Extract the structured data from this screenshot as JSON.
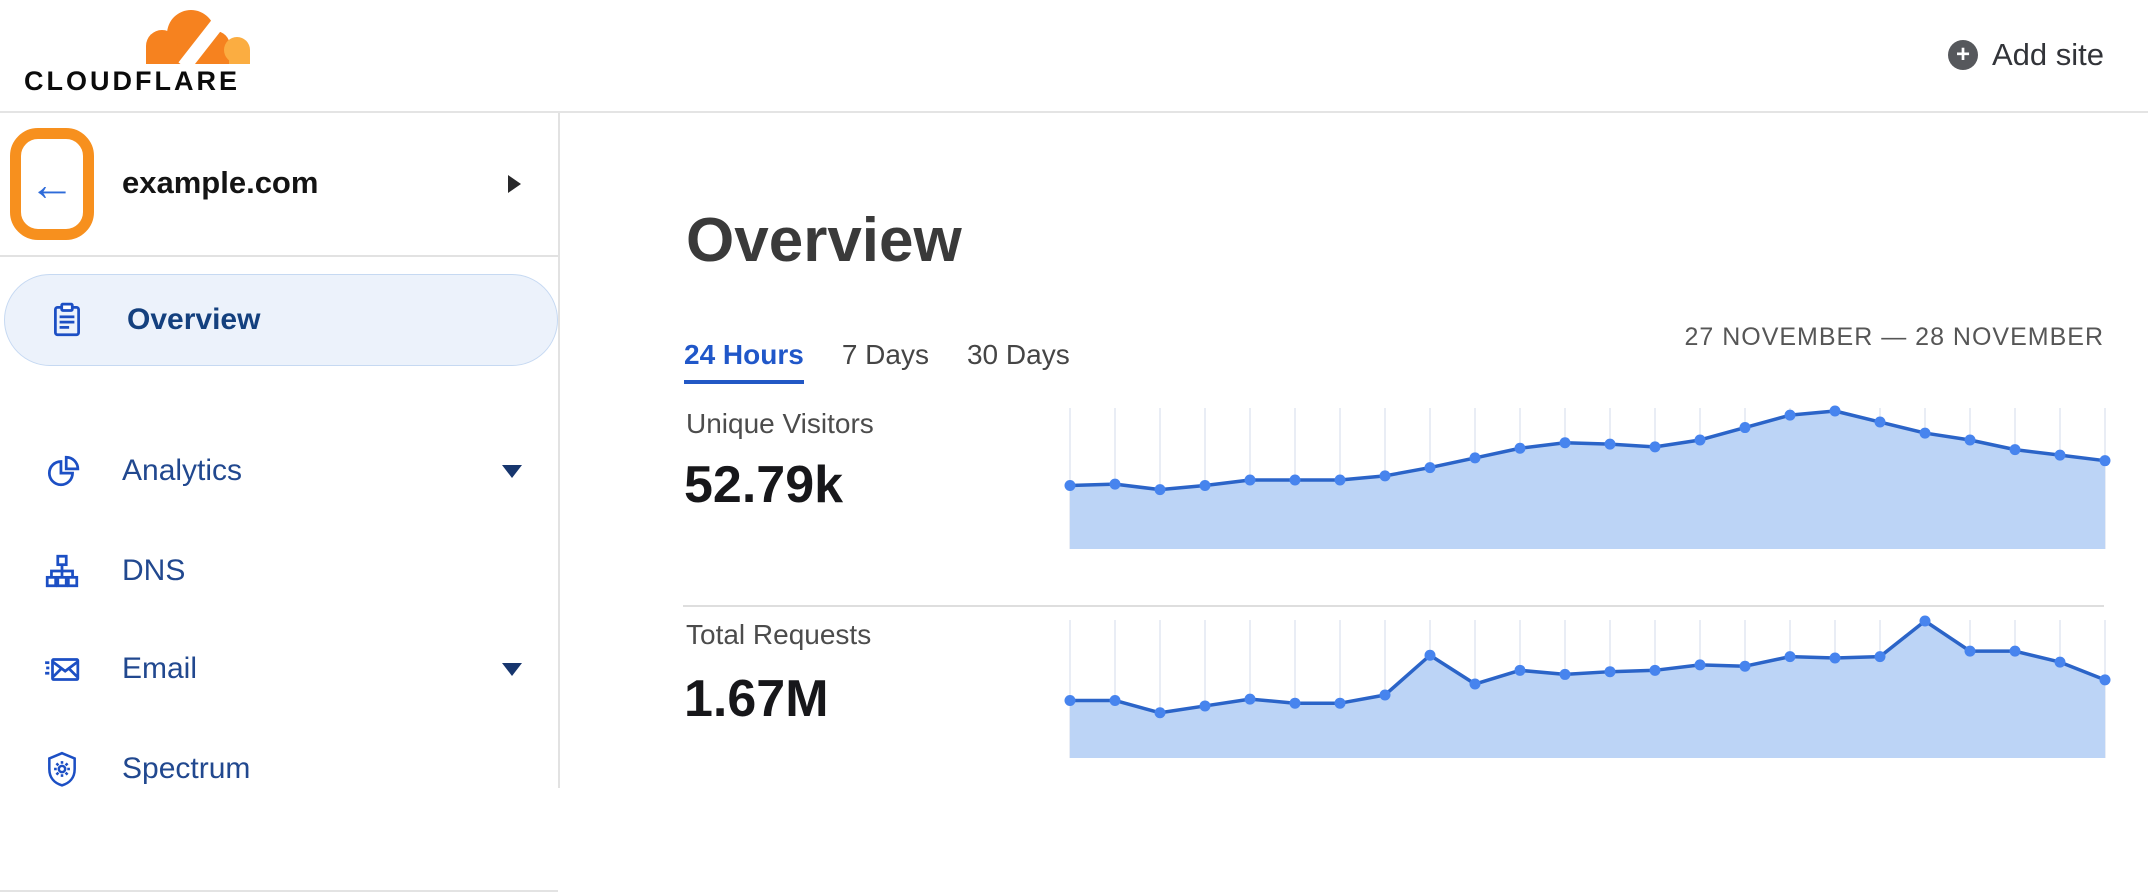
{
  "header": {
    "logo_text": "CLOUDFLARE",
    "add_site_label": "Add site",
    "brand_orange": "#f6821f",
    "brand_orange_light": "#fbad41"
  },
  "sidebar": {
    "site": {
      "name": "example.com"
    },
    "back_arrow": "←",
    "items": [
      {
        "label": "Overview",
        "icon": "clipboard-icon",
        "active": true,
        "expandable": false
      },
      {
        "label": "Analytics",
        "icon": "pie-chart-icon",
        "active": false,
        "expandable": true
      },
      {
        "label": "DNS",
        "icon": "network-tree-icon",
        "active": false,
        "expandable": false
      },
      {
        "label": "Email",
        "icon": "email-icon",
        "active": false,
        "expandable": true
      },
      {
        "label": "Spectrum",
        "icon": "shield-icon",
        "active": false,
        "expandable": false
      }
    ],
    "annotation": {
      "shape": "orange-rounded-box",
      "color": "#f7901e",
      "target": "back-button"
    }
  },
  "main": {
    "title": "Overview",
    "tabs": [
      {
        "label": "24 Hours",
        "active": true
      },
      {
        "label": "7 Days",
        "active": false
      },
      {
        "label": "30 Days",
        "active": false
      }
    ],
    "date_range": "27 NOVEMBER — 28 NOVEMBER"
  },
  "chart_data": [
    {
      "type": "area",
      "title": "Unique Visitors",
      "value_label": "52.79k",
      "x_unit": "hours (24h window, no axis labels shown)",
      "y_axis": "unlabeled; values are relative heights, % of series max",
      "grid": "vertical gridlines at each point",
      "legend": "none",
      "relative_values": [
        46,
        47,
        43,
        46,
        50,
        50,
        50,
        53,
        59,
        66,
        73,
        77,
        76,
        74,
        79,
        88,
        97,
        100,
        92,
        84,
        79,
        72,
        68,
        64
      ],
      "colors": {
        "line": "#2b64c8",
        "dot": "#4784ee",
        "fill": "#bcd4f6",
        "grid": "#e9edf5"
      }
    },
    {
      "type": "area",
      "title": "Total Requests",
      "value_label": "1.67M",
      "x_unit": "hours (24h window, no axis labels shown)",
      "y_axis": "unlabeled; values are relative heights, % of series max",
      "grid": "vertical gridlines at each point",
      "legend": "none",
      "relative_values": [
        42,
        42,
        33,
        38,
        43,
        40,
        40,
        46,
        75,
        54,
        64,
        61,
        63,
        64,
        68,
        67,
        74,
        73,
        74,
        100,
        78,
        78,
        70,
        57
      ],
      "colors": {
        "line": "#2b64c8",
        "dot": "#4784ee",
        "fill": "#bcd4f6",
        "grid": "#e9edf5"
      }
    }
  ]
}
